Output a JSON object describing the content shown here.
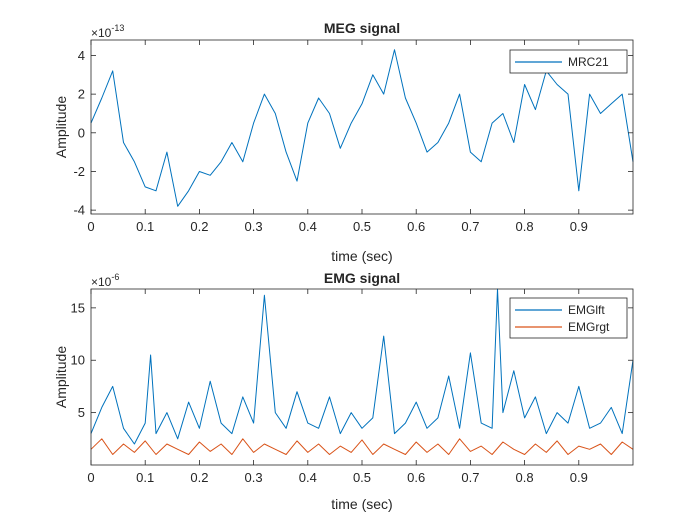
{
  "chart_data": [
    {
      "type": "line",
      "title": "MEG signal",
      "xlabel": "time (sec)",
      "ylabel": "Amplitude",
      "exponent_base": "×10",
      "exponent_power": "-13",
      "xlim": [
        0,
        1.0
      ],
      "ylim": [
        -4.2,
        4.8
      ],
      "xticks": [
        0,
        0.1,
        0.2,
        0.3,
        0.4,
        0.5,
        0.6,
        0.7,
        0.8,
        0.9
      ],
      "xtick_labels": [
        "0",
        "0.1",
        "0.2",
        "0.3",
        "0.4",
        "0.5",
        "0.6",
        "0.7",
        "0.8",
        "0.9"
      ],
      "yticks": [
        -4,
        -2,
        0,
        2,
        4
      ],
      "ytick_labels": [
        "-4",
        "-2",
        "0",
        "2",
        "4"
      ],
      "grid": false,
      "legend_position": "top-right",
      "series": [
        {
          "name": "MRC21",
          "color": "#0072BD",
          "x": [
            0,
            0.02,
            0.04,
            0.06,
            0.08,
            0.1,
            0.12,
            0.14,
            0.16,
            0.18,
            0.2,
            0.22,
            0.24,
            0.26,
            0.28,
            0.3,
            0.32,
            0.34,
            0.36,
            0.38,
            0.4,
            0.42,
            0.44,
            0.46,
            0.48,
            0.5,
            0.52,
            0.54,
            0.56,
            0.58,
            0.6,
            0.62,
            0.64,
            0.66,
            0.68,
            0.7,
            0.72,
            0.74,
            0.76,
            0.78,
            0.8,
            0.82,
            0.84,
            0.86,
            0.88,
            0.9,
            0.92,
            0.94,
            0.96,
            0.98,
            1.0
          ],
          "values": [
            0.5,
            1.8,
            3.2,
            -0.5,
            -1.5,
            -2.8,
            -3.0,
            -1.0,
            -3.8,
            -3.0,
            -2.0,
            -2.2,
            -1.5,
            -0.5,
            -1.5,
            0.5,
            2.0,
            1.0,
            -1.0,
            -2.5,
            0.5,
            1.8,
            1.0,
            -0.8,
            0.5,
            1.5,
            3.0,
            2.0,
            4.3,
            1.8,
            0.5,
            -1.0,
            -0.5,
            0.5,
            2.0,
            -1.0,
            -1.5,
            0.5,
            1.0,
            -0.5,
            2.5,
            1.2,
            3.2,
            2.5,
            2.0,
            -3.0,
            2.0,
            1.0,
            1.5,
            2.0,
            -1.5
          ]
        }
      ]
    },
    {
      "type": "line",
      "title": "EMG signal",
      "xlabel": "time (sec)",
      "ylabel": "Amplitude",
      "exponent_base": "×10",
      "exponent_power": "-6",
      "xlim": [
        0,
        1.0
      ],
      "ylim": [
        0,
        16.8
      ],
      "xticks": [
        0,
        0.1,
        0.2,
        0.3,
        0.4,
        0.5,
        0.6,
        0.7,
        0.8,
        0.9
      ],
      "xtick_labels": [
        "0",
        "0.1",
        "0.2",
        "0.3",
        "0.4",
        "0.5",
        "0.6",
        "0.7",
        "0.8",
        "0.9"
      ],
      "yticks": [
        5,
        10,
        15
      ],
      "ytick_labels": [
        "5",
        "10",
        "15"
      ],
      "grid": false,
      "legend_position": "top-right",
      "series": [
        {
          "name": "EMGlft",
          "color": "#0072BD",
          "x": [
            0,
            0.02,
            0.04,
            0.06,
            0.08,
            0.1,
            0.11,
            0.12,
            0.14,
            0.16,
            0.18,
            0.2,
            0.22,
            0.24,
            0.26,
            0.28,
            0.3,
            0.32,
            0.34,
            0.36,
            0.38,
            0.4,
            0.42,
            0.44,
            0.46,
            0.48,
            0.5,
            0.52,
            0.54,
            0.56,
            0.58,
            0.6,
            0.62,
            0.64,
            0.66,
            0.68,
            0.7,
            0.72,
            0.74,
            0.75,
            0.76,
            0.78,
            0.8,
            0.82,
            0.84,
            0.86,
            0.88,
            0.9,
            0.92,
            0.94,
            0.96,
            0.98,
            1.0
          ],
          "values": [
            3.0,
            5.5,
            7.5,
            3.5,
            2.0,
            4.0,
            10.5,
            3.0,
            5.0,
            2.5,
            6.0,
            3.5,
            8.0,
            4.0,
            3.0,
            6.5,
            4.0,
            16.2,
            5.0,
            3.5,
            7.0,
            4.0,
            3.5,
            6.5,
            3.0,
            5.0,
            3.5,
            4.5,
            12.3,
            3.0,
            4.0,
            6.0,
            3.5,
            4.5,
            8.5,
            3.5,
            10.7,
            4.0,
            3.5,
            16.8,
            5.0,
            9.0,
            4.5,
            6.5,
            3.0,
            5.0,
            4.0,
            7.5,
            3.5,
            4.0,
            5.5,
            3.0,
            10.0
          ]
        },
        {
          "name": "EMGrgt",
          "color": "#D95319",
          "x": [
            0,
            0.02,
            0.04,
            0.06,
            0.08,
            0.1,
            0.12,
            0.14,
            0.16,
            0.18,
            0.2,
            0.22,
            0.24,
            0.26,
            0.28,
            0.3,
            0.32,
            0.34,
            0.36,
            0.38,
            0.4,
            0.42,
            0.44,
            0.46,
            0.48,
            0.5,
            0.52,
            0.54,
            0.56,
            0.58,
            0.6,
            0.62,
            0.64,
            0.66,
            0.68,
            0.7,
            0.72,
            0.74,
            0.76,
            0.78,
            0.8,
            0.82,
            0.84,
            0.86,
            0.88,
            0.9,
            0.92,
            0.94,
            0.96,
            0.98,
            1.0
          ],
          "values": [
            1.5,
            2.5,
            1.0,
            2.0,
            1.2,
            2.3,
            1.0,
            2.0,
            1.5,
            1.0,
            2.2,
            1.3,
            2.0,
            1.0,
            2.5,
            1.2,
            2.0,
            1.5,
            1.0,
            2.3,
            1.2,
            2.0,
            1.0,
            1.8,
            1.2,
            2.4,
            1.0,
            2.0,
            1.5,
            1.0,
            2.2,
            1.2,
            2.0,
            1.0,
            2.5,
            1.3,
            1.8,
            1.0,
            2.2,
            1.5,
            1.0,
            2.0,
            1.2,
            2.3,
            1.0,
            1.8,
            1.5,
            2.0,
            1.0,
            2.2,
            1.5
          ]
        }
      ]
    }
  ]
}
